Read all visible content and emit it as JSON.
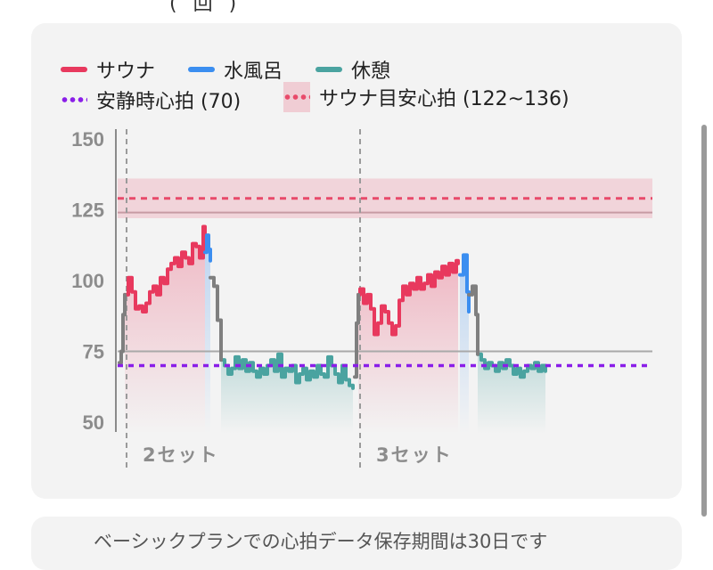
{
  "top_stub": "(回)",
  "legend": [
    {
      "label": "サウナ",
      "color": "#e8395e",
      "kind": "line"
    },
    {
      "label": "水風呂",
      "color": "#3b8ef0",
      "kind": "line"
    },
    {
      "label": "休憩",
      "color": "#4aa3a0",
      "kind": "line"
    },
    {
      "label": "安静時心拍 (70)",
      "color": "#8a1ee8",
      "kind": "dots"
    },
    {
      "label": "サウナ目安心拍 (122~136)",
      "color": "#e84a6a",
      "kind": "band"
    }
  ],
  "notice": "ベーシックプランでの心拍データ保存期間は30日です",
  "chart_data": {
    "type": "line",
    "ylim": [
      45,
      155
    ],
    "yticks": [
      "150",
      "125",
      "100",
      "75",
      "50"
    ],
    "ytick_values": [
      150,
      125,
      100,
      75,
      50
    ],
    "x_range": [
      0,
      100
    ],
    "reference_lines": [
      {
        "label": "安静時心拍 (70)",
        "value": 70,
        "style": "dotted"
      },
      {
        "label": "サウナ目安心拍 (122~136)",
        "band": [
          122,
          136
        ],
        "value": 129,
        "style": "dotted"
      },
      {
        "label": "",
        "value": 75,
        "style": "solid"
      },
      {
        "label": "",
        "value": 124,
        "style": "solid"
      }
    ],
    "sets": [
      {
        "label": "2セット",
        "x": 2
      },
      {
        "label": "3セット",
        "x": 67.5
      }
    ],
    "colors": {
      "sauna": "#e8395e",
      "cold": "#3b8ef0",
      "rest": "#4aa3a0",
      "transition": "#7f7f7f"
    },
    "series": [
      {
        "name": "サウナ",
        "segments": [
          {
            "x": [
              2,
              3,
              4,
              5,
              6,
              7,
              8,
              9,
              10,
              11,
              12,
              13,
              14,
              15,
              16,
              17,
              18,
              19,
              20,
              21,
              22,
              23,
              24,
              24.5
            ],
            "y": [
              95,
              101,
              96,
              90,
              91,
              89,
              92,
              96,
              98,
              95,
              101,
              99,
              104,
              106,
              108,
              105,
              110,
              108,
              106,
              113,
              112,
              108,
              119,
              115
            ]
          },
          {
            "x": [
              67.5,
              68,
              69,
              70,
              71,
              72,
              73,
              74,
              75,
              76,
              77,
              78,
              79,
              80,
              81,
              82,
              83,
              84,
              85,
              86,
              87,
              88,
              89,
              90,
              91,
              92,
              93,
              94,
              95,
              95.5
            ],
            "y": [
              95,
              97,
              92,
              95,
              90,
              81,
              85,
              91,
              89,
              85,
              81,
              84,
              93,
              98,
              95,
              99,
              97,
              101,
              97,
              99,
              102,
              98,
              103,
              101,
              105,
              102,
              106,
              103,
              107,
              106
            ]
          }
        ]
      },
      {
        "name": "水風呂",
        "segments": [
          {
            "x": [
              24.5,
              25,
              25.5,
              26
            ],
            "y": [
              110,
              116,
              111,
              107
            ]
          },
          {
            "x": [
              96,
              97,
              98,
              98.5
            ],
            "y": [
              102,
              109,
              96,
              89
            ]
          }
        ]
      },
      {
        "name": "休憩",
        "segments": [
          {
            "x": [
              29,
              30,
              31,
              32,
              33,
              34,
              35,
              36,
              37,
              38,
              39,
              40,
              41,
              42,
              43,
              44,
              45,
              46,
              47,
              48,
              49,
              50,
              51,
              52,
              53,
              54,
              55,
              56,
              57,
              58,
              59,
              60,
              61,
              62,
              63,
              64,
              65,
              66
            ],
            "y": [
              72,
              70,
              67,
              69,
              73,
              69,
              72,
              68,
              71,
              68,
              66,
              69,
              67,
              70,
              72,
              68,
              74,
              66,
              69,
              68,
              70,
              64,
              67,
              69,
              65,
              68,
              66,
              70,
              67,
              66,
              73,
              70,
              67,
              64,
              70,
              65,
              63,
              62
            ]
          },
          {
            "x": [
              101,
              102,
              103,
              104,
              105,
              106,
              107,
              108,
              109,
              110,
              111,
              112,
              113,
              114,
              115,
              116,
              117,
              118,
              119,
              120
            ],
            "y": [
              74,
              72,
              69,
              71,
              70,
              68,
              71,
              69,
              72,
              70,
              67,
              69,
              66,
              68,
              70,
              69,
              71,
              68,
              70,
              68
            ]
          }
        ]
      }
    ],
    "transitions": [
      {
        "x": [
          0.5,
          1,
          1.5,
          2
        ],
        "y": [
          71,
          75,
          88,
          95
        ]
      },
      {
        "x": [
          26,
          27,
          28,
          29
        ],
        "y": [
          101,
          98,
          86,
          72
        ]
      },
      {
        "x": [
          66.5,
          67,
          67.5
        ],
        "y": [
          66,
          85,
          95
        ]
      },
      {
        "x": [
          98.5,
          99.5,
          100.5,
          101
        ],
        "y": [
          95,
          98,
          88,
          74
        ]
      }
    ]
  }
}
